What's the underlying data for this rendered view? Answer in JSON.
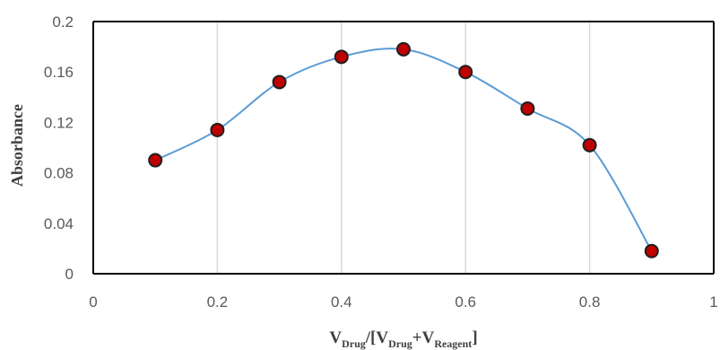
{
  "chart_data": {
    "type": "line",
    "title": "",
    "ylabel": "Absorbance",
    "xlabel_parts": {
      "v1": "V",
      "sub1": "Drug",
      "mid": "/[V",
      "sub2": "Drug",
      "plus": "+V",
      "sub3": "Reagent",
      "end": "]"
    },
    "xlim": [
      0,
      1
    ],
    "ylim": [
      0,
      0.2
    ],
    "x_ticks": [
      "0",
      "0.2",
      "0.4",
      "0.6",
      "0.8",
      "1"
    ],
    "y_ticks": [
      "0",
      "0.04",
      "0.08",
      "0.12",
      "0.16",
      "0.2"
    ],
    "grid": "vertical",
    "smooth": true,
    "series": [
      {
        "x": [
          0.1,
          0.2,
          0.3,
          0.4,
          0.5,
          0.6,
          0.7,
          0.8,
          0.9
        ],
        "values": [
          0.09,
          0.114,
          0.152,
          0.172,
          0.178,
          0.16,
          0.131,
          0.102,
          0.018
        ]
      }
    ],
    "colors": {
      "line": "#5B9BD5",
      "marker_fill": "#C00000",
      "marker_edge": "#1F1F1F",
      "grid": "#D9D9D9",
      "axis": "#000000"
    }
  }
}
